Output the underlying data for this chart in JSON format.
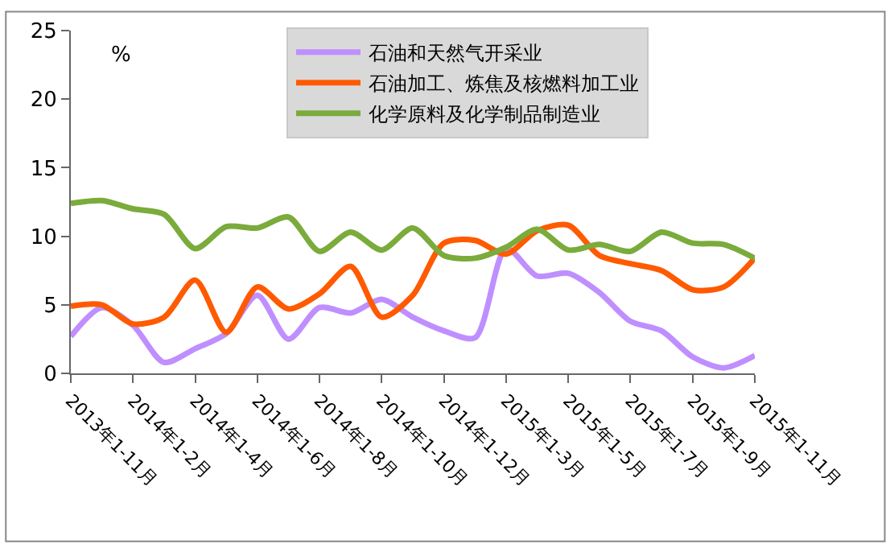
{
  "chart_data": {
    "type": "line",
    "ylabel": "%",
    "categories": [
      "2013年1-11月",
      null,
      "2014年1-2月",
      null,
      "2014年1-4月",
      null,
      "2014年1-6月",
      null,
      "2014年1-8月",
      null,
      "2014年1-10月",
      null,
      "2014年1-12月",
      null,
      "2015年1-3月",
      null,
      "2015年1-5月",
      null,
      "2015年1-7月",
      null,
      "2015年1-9月",
      null,
      "2015年1-11月"
    ],
    "series": [
      {
        "name": "石油和天然气开采业",
        "color": "#bf8fff",
        "values": [
          2.7,
          4.8,
          3.5,
          0.8,
          1.8,
          2.9,
          5.7,
          2.5,
          4.8,
          4.4,
          5.4,
          4.1,
          3.1,
          2.6,
          9.1,
          7.1,
          7.3,
          5.9,
          3.8,
          3.1,
          1.2,
          0.4,
          1.3
        ]
      },
      {
        "name": "石油加工、炼焦及核燃料加工业",
        "color": "#ff5a00",
        "values": [
          4.9,
          5.0,
          3.6,
          4.1,
          6.8,
          3.0,
          6.3,
          4.7,
          5.8,
          7.8,
          4.1,
          5.7,
          9.5,
          9.7,
          8.7,
          10.4,
          10.8,
          8.6,
          8.0,
          7.5,
          6.1,
          6.3,
          8.4
        ]
      },
      {
        "name": "化学原料及化学制品制造业",
        "color": "#7aab3b",
        "values": [
          12.4,
          12.6,
          12.0,
          11.6,
          9.1,
          10.7,
          10.6,
          11.4,
          8.9,
          10.3,
          9.0,
          10.6,
          8.6,
          8.4,
          9.2,
          10.5,
          9.0,
          9.4,
          8.9,
          10.3,
          9.5,
          9.4,
          8.4
        ]
      }
    ],
    "ylim": [
      0,
      25
    ],
    "yticks": [
      0,
      5,
      10,
      15,
      20,
      25
    ],
    "grid": false,
    "legend": "top",
    "marker": "none",
    "line_style": "solid"
  }
}
